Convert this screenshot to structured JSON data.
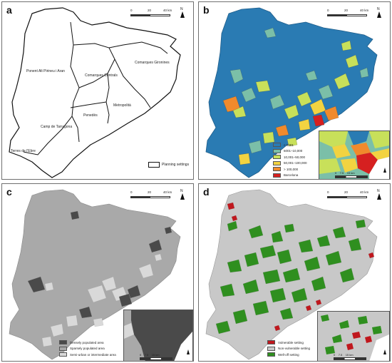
{
  "panels": {
    "a": {
      "letter": "a",
      "regions": [
        "Ponent Alt Pirineu i Aran",
        "Comarques Centrals",
        "Comarques Gironines",
        "Metropolità",
        "Penedès",
        "Camp de Tarragona",
        "Terres de l'Ebre"
      ],
      "legend_label": "Planning settings",
      "scale": {
        "t0": "0",
        "t1": "20",
        "t2": "40 km"
      },
      "north_label": "N"
    },
    "b": {
      "letter": "b",
      "legend": [
        {
          "label": "< 5001",
          "color": "#2a7bb3"
        },
        {
          "label": "5001–10,000",
          "color": "#7bbfa8"
        },
        {
          "label": "10,001–50,000",
          "color": "#c8e05a"
        },
        {
          "label": "50,001–100,000",
          "color": "#f2d341"
        },
        {
          "label": "> 100,000",
          "color": "#f08a2c"
        },
        {
          "label": "Barcelona",
          "color": "#d62020"
        }
      ],
      "scale": {
        "t0": "0",
        "t1": "20",
        "t2": "40 km"
      },
      "inset_scale": {
        "t0": "0",
        "t1": "7.5",
        "t2": "15 km"
      },
      "north_label": "N"
    },
    "c": {
      "letter": "c",
      "legend": [
        {
          "label": "Densely populated area",
          "color": "#4a4a4a"
        },
        {
          "label": "Sparsely populated area",
          "color": "#a9a9a9"
        },
        {
          "label": "Semi-urban or intermediate area",
          "color": "#d9d9d9"
        }
      ],
      "scale": {
        "t0": "0",
        "t1": "20",
        "t2": "40 km"
      },
      "inset_scale": {
        "t0": "0",
        "t1": "7.5",
        "t2": "15 km"
      },
      "north_label": "N"
    },
    "d": {
      "letter": "d",
      "legend": [
        {
          "label": "Vulnerable setting",
          "color": "#c0171d"
        },
        {
          "label": "Non-vulnerable setting",
          "color": "#c8c8c8"
        },
        {
          "label": "Well-off setting",
          "color": "#2f8f1f"
        }
      ],
      "scale": {
        "t0": "0",
        "t1": "20",
        "t2": "40 km"
      },
      "inset_scale": {
        "t0": "0",
        "t1": "7.5",
        "t2": "15 km"
      },
      "north_label": "N"
    }
  }
}
